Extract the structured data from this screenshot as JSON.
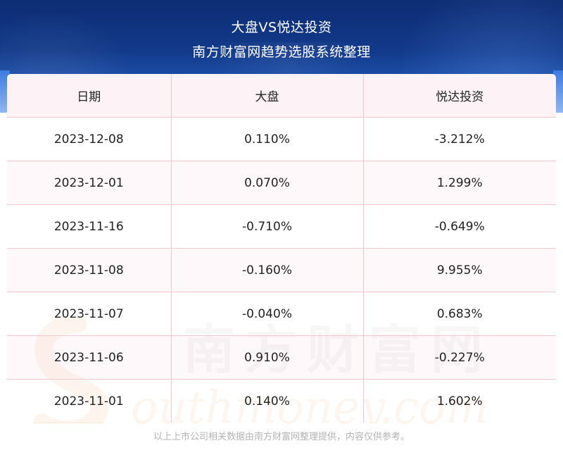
{
  "header": {
    "title_line1": "大盘VS悦达投资",
    "title_line2": "南方财富网趋势选股系统整理"
  },
  "table": {
    "columns": [
      "日期",
      "大盘",
      "悦达投资"
    ],
    "rows": [
      [
        "2023-12-08",
        "0.110%",
        "-3.212%"
      ],
      [
        "2023-12-01",
        "0.070%",
        "1.299%"
      ],
      [
        "2023-11-16",
        "-0.710%",
        "-0.649%"
      ],
      [
        "2023-11-08",
        "-0.160%",
        "9.955%"
      ],
      [
        "2023-11-07",
        "-0.040%",
        "0.683%"
      ],
      [
        "2023-11-06",
        "0.910%",
        "-0.227%"
      ],
      [
        "2023-11-01",
        "0.140%",
        "1.602%"
      ]
    ]
  },
  "watermark": {
    "cn": "南方财富网",
    "en": "outhmoney.com"
  },
  "footer": {
    "note": "以上上市公司相关数据由南方财富网整理提供，内容仅供参考。"
  },
  "colors": {
    "header_bg": "#123a8a",
    "grid_line": "#f0c8d0",
    "header_row_bg": "#fdf2f5",
    "watermark": "#f2b98a",
    "footer_text": "#b3b3b3"
  }
}
